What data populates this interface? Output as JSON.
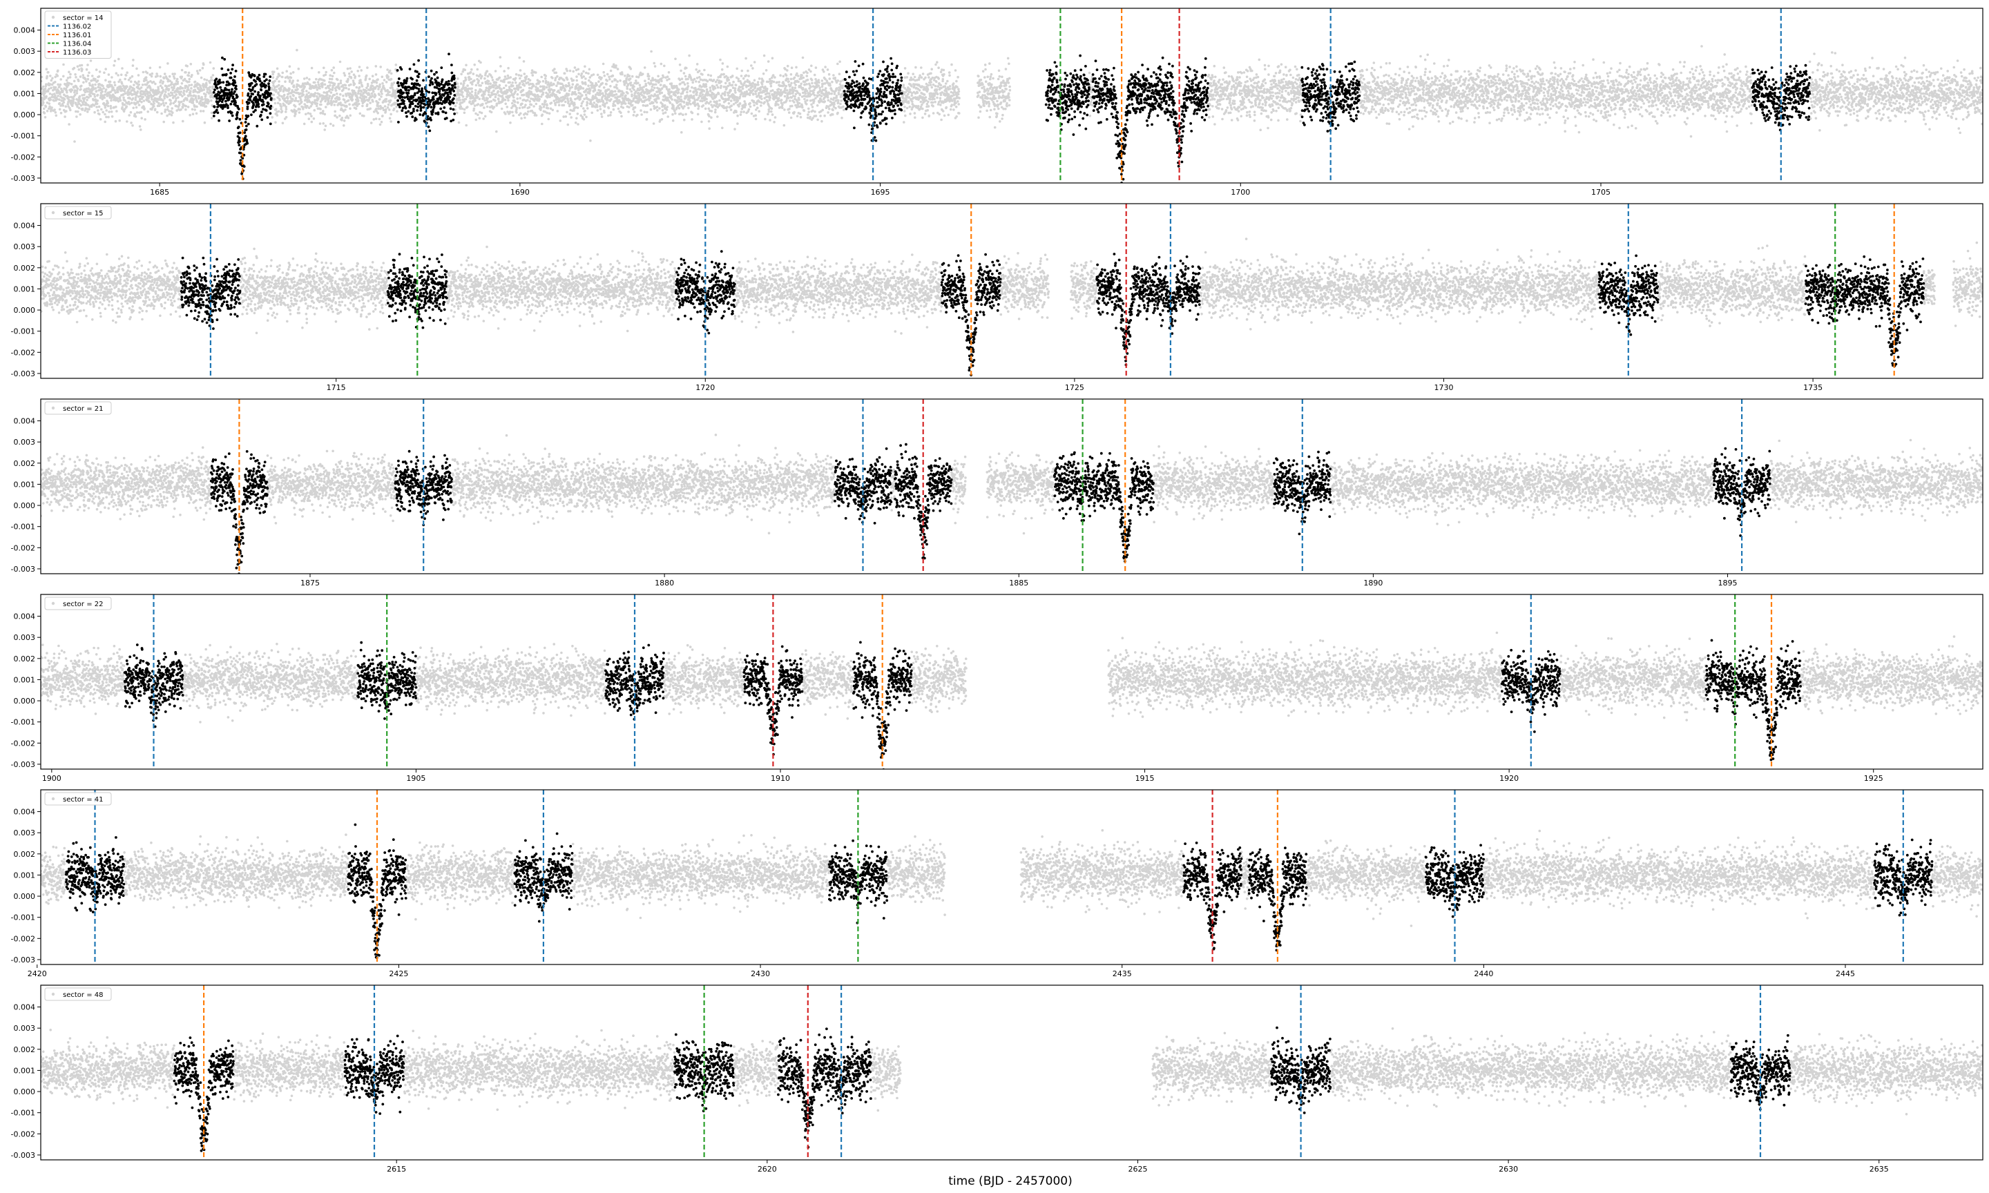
{
  "figure": {
    "xlabel": "time (BJD - 2457000)",
    "yticks": [
      "-0.003",
      "-0.002",
      "-0.001",
      "0.000",
      "0.001",
      "0.002",
      "0.003",
      "0.004"
    ],
    "transit_colors": {
      "1136.02": "#1f77b4",
      "1136.01": "#ff7f0e",
      "1136.04": "#2ca02c",
      "1136.03": "#d62728"
    },
    "background_point_color": "#d3d3d3",
    "in_transit_point_color": "#000000"
  },
  "legend_entries": [
    {
      "label": "1136.02",
      "color": "#1f77b4"
    },
    {
      "label": "1136.01",
      "color": "#ff7f0e"
    },
    {
      "label": "1136.04",
      "color": "#2ca02c"
    },
    {
      "label": "1136.03",
      "color": "#d62728"
    }
  ],
  "chart_data": [
    {
      "type": "scatter",
      "sector_label": "sector = 14",
      "xlim": [
        1683.35,
        1710.3
      ],
      "ylim": [
        -0.0031,
        0.0049
      ],
      "xticks": [
        "1685",
        "1690",
        "1695",
        "1700",
        "1705"
      ],
      "gaps": [
        [
          1696.1,
          1696.35
        ],
        [
          1696.8,
          1697.3
        ]
      ],
      "transits": [
        {
          "planet": "1136.01",
          "t": 1686.15
        },
        {
          "planet": "1136.02",
          "t": 1688.7
        },
        {
          "planet": "1136.02",
          "t": 1694.9
        },
        {
          "planet": "1136.04",
          "t": 1697.5
        },
        {
          "planet": "1136.01",
          "t": 1698.35
        },
        {
          "planet": "1136.03",
          "t": 1699.15
        },
        {
          "planet": "1136.02",
          "t": 1701.25
        },
        {
          "planet": "1136.02",
          "t": 1707.5
        }
      ]
    },
    {
      "type": "scatter",
      "sector_label": "sector = 15",
      "xlim": [
        1711.0,
        1737.3
      ],
      "ylim": [
        -0.0031,
        0.0049
      ],
      "xticks": [
        "1715",
        "1720",
        "1725",
        "1730",
        "1735"
      ],
      "gaps": [
        [
          1724.65,
          1724.95
        ],
        [
          1736.65,
          1736.9
        ]
      ],
      "transits": [
        {
          "planet": "1136.02",
          "t": 1713.3
        },
        {
          "planet": "1136.04",
          "t": 1716.1
        },
        {
          "planet": "1136.02",
          "t": 1720.0
        },
        {
          "planet": "1136.01",
          "t": 1723.6
        },
        {
          "planet": "1136.03",
          "t": 1725.7
        },
        {
          "planet": "1136.02",
          "t": 1726.3
        },
        {
          "planet": "1136.02",
          "t": 1732.5
        },
        {
          "planet": "1136.04",
          "t": 1735.3
        },
        {
          "planet": "1136.01",
          "t": 1736.1
        }
      ]
    },
    {
      "type": "scatter",
      "sector_label": "sector = 21",
      "xlim": [
        1871.2,
        1898.6
      ],
      "ylim": [
        -0.0031,
        0.0049
      ],
      "xticks": [
        "1875",
        "1880",
        "1885",
        "1890",
        "1895"
      ],
      "gaps": [
        [
          1884.25,
          1884.55
        ]
      ],
      "transits": [
        {
          "planet": "1136.01",
          "t": 1874.0
        },
        {
          "planet": "1136.02",
          "t": 1876.6
        },
        {
          "planet": "1136.02",
          "t": 1882.8
        },
        {
          "planet": "1136.03",
          "t": 1883.65
        },
        {
          "planet": "1136.04",
          "t": 1885.9
        },
        {
          "planet": "1136.01",
          "t": 1886.5
        },
        {
          "planet": "1136.02",
          "t": 1889.0
        },
        {
          "planet": "1136.02",
          "t": 1895.2
        }
      ]
    },
    {
      "type": "scatter",
      "sector_label": "sector = 22",
      "xlim": [
        1899.85,
        1926.5
      ],
      "ylim": [
        -0.0031,
        0.0049
      ],
      "xticks": [
        "1900",
        "1905",
        "1910",
        "1915",
        "1920",
        "1925"
      ],
      "gaps": [
        [
          1912.55,
          1914.5
        ]
      ],
      "transits": [
        {
          "planet": "1136.02",
          "t": 1901.4
        },
        {
          "planet": "1136.04",
          "t": 1904.6
        },
        {
          "planet": "1136.02",
          "t": 1908.0
        },
        {
          "planet": "1136.03",
          "t": 1909.9
        },
        {
          "planet": "1136.01",
          "t": 1911.4
        },
        {
          "planet": "1136.02",
          "t": 1920.3
        },
        {
          "planet": "1136.04",
          "t": 1923.1
        },
        {
          "planet": "1136.01",
          "t": 1923.6
        }
      ]
    },
    {
      "type": "scatter",
      "sector_label": "sector = 41",
      "xlim": [
        2420.05,
        2446.9
      ],
      "ylim": [
        -0.0031,
        0.0049
      ],
      "xticks": [
        "2420",
        "2425",
        "2430",
        "2435",
        "2440",
        "2445"
      ],
      "gaps": [
        [
          2432.55,
          2433.6
        ]
      ],
      "transits": [
        {
          "planet": "1136.02",
          "t": 2420.8
        },
        {
          "planet": "1136.01",
          "t": 2424.7
        },
        {
          "planet": "1136.02",
          "t": 2427.0
        },
        {
          "planet": "1136.04",
          "t": 2431.35
        },
        {
          "planet": "1136.03",
          "t": 2436.25
        },
        {
          "planet": "1136.01",
          "t": 2437.15
        },
        {
          "planet": "1136.02",
          "t": 2439.6
        },
        {
          "planet": "1136.02",
          "t": 2445.8
        }
      ]
    },
    {
      "type": "scatter",
      "sector_label": "sector = 48",
      "xlim": [
        2610.2,
        2636.4
      ],
      "ylim": [
        -0.0031,
        0.0049
      ],
      "xticks": [
        "2615",
        "2620",
        "2625",
        "2630",
        "2635"
      ],
      "gaps": [
        [
          2621.8,
          2625.2
        ]
      ],
      "transits": [
        {
          "planet": "1136.01",
          "t": 2612.4
        },
        {
          "planet": "1136.02",
          "t": 2614.7
        },
        {
          "planet": "1136.04",
          "t": 2619.15
        },
        {
          "planet": "1136.03",
          "t": 2620.55
        },
        {
          "planet": "1136.02",
          "t": 2621.0
        },
        {
          "planet": "1136.02",
          "t": 2627.2
        },
        {
          "planet": "1136.02",
          "t": 2633.4
        }
      ]
    }
  ]
}
